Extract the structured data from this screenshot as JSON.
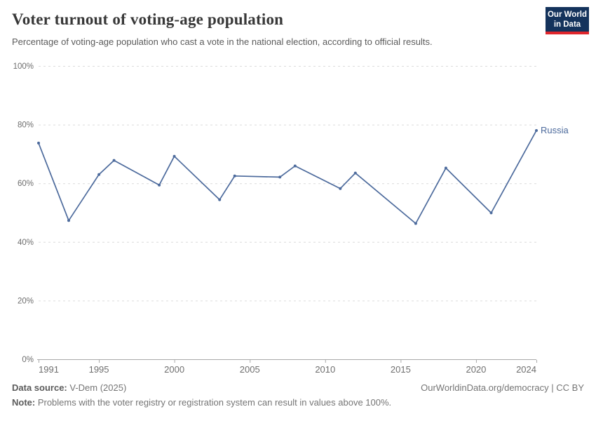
{
  "header": {
    "title": "Voter turnout of voting-age population",
    "subtitle": "Percentage of voting-age population who cast a vote in the national election, according to official results.",
    "logo": {
      "line1": "Our World",
      "line2": "in Data"
    }
  },
  "chart_data": {
    "type": "line",
    "title": "Voter turnout of voting-age population",
    "xlabel": "",
    "ylabel": "",
    "xlim": [
      1991,
      2024
    ],
    "ylim": [
      0,
      100
    ],
    "grid": "horizontal-dashed",
    "legend_position": "end-of-line-label",
    "series": [
      {
        "name": "Russia",
        "x": [
          1991,
          1993,
          1995,
          1996,
          1999,
          2000,
          2003,
          2004,
          2007,
          2008,
          2011,
          2012,
          2016,
          2018,
          2021,
          2024
        ],
        "values": [
          73.7,
          47.3,
          63.0,
          67.8,
          59.4,
          69.2,
          54.4,
          62.5,
          62.1,
          65.9,
          58.2,
          63.5,
          46.3,
          65.2,
          49.9,
          78.0
        ]
      }
    ],
    "x_ticks": {
      "values": [
        1991,
        1995,
        2000,
        2005,
        2010,
        2015,
        2020,
        2024
      ],
      "labels": [
        "1991",
        "1995",
        "2000",
        "2005",
        "2010",
        "2015",
        "2020",
        "2024"
      ]
    },
    "y_ticks": {
      "values": [
        0,
        20,
        40,
        60,
        80,
        100
      ],
      "labels": [
        "0%",
        "20%",
        "40%",
        "60%",
        "80%",
        "100%"
      ]
    },
    "end_label": "Russia"
  },
  "footer": {
    "datasource_label": "Data source:",
    "datasource_value": " V-Dem (2025)",
    "note_label": "Note:",
    "note_value": " Problems with the voter registry or registration system can result in values above 100%.",
    "link": "OurWorldinData.org/democracy | CC BY"
  },
  "colors": {
    "line": "#4C6A9C",
    "end_label": "#4C6A9C",
    "logo_bg": "#14335C",
    "logo_red": "#E0262C",
    "title_text": "#383838",
    "subtitle_text": "#5b5b5b",
    "footer_text": "#757575",
    "tick_text": "#6e6e6e",
    "gridline": "#dcdcdc",
    "axis": "#a8a8a8"
  }
}
